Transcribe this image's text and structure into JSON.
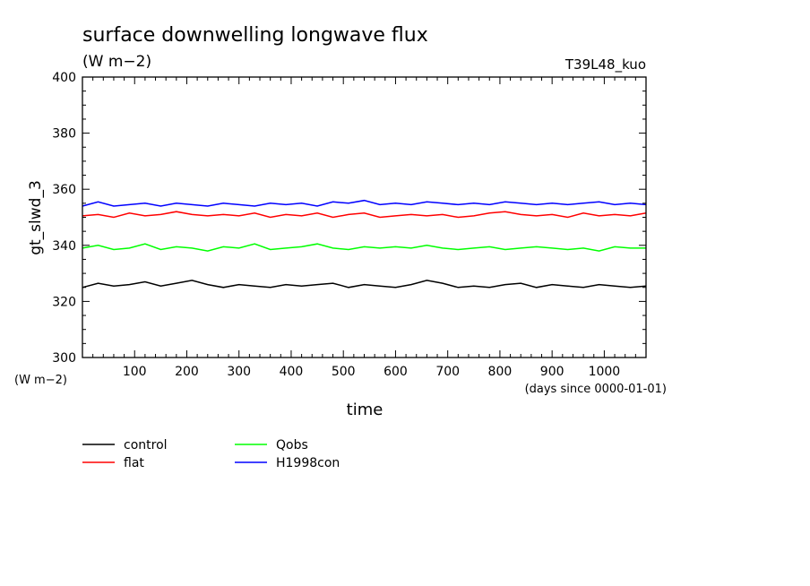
{
  "chart_data": {
    "type": "line",
    "title": "surface downwelling longwave flux",
    "units": "(W m−2)",
    "run_label": "T39L48_kuo",
    "ylabel": "gt_slwd_3",
    "ylabel_units": "(W m−2)",
    "xlabel": "time",
    "xlabel_units": "(days since 0000-01-01)",
    "xlim": [
      0,
      1080
    ],
    "ylim": [
      300,
      400
    ],
    "x_ticks": [
      100,
      200,
      300,
      400,
      500,
      600,
      700,
      800,
      900,
      1000
    ],
    "y_ticks": [
      300,
      320,
      340,
      360,
      380,
      400
    ],
    "grid": false,
    "legend_position": "bottom-left",
    "x": [
      0,
      30,
      60,
      90,
      120,
      150,
      180,
      210,
      240,
      270,
      300,
      330,
      360,
      390,
      420,
      450,
      480,
      510,
      540,
      570,
      600,
      630,
      660,
      690,
      720,
      750,
      780,
      810,
      840,
      870,
      900,
      930,
      960,
      990,
      1020,
      1050,
      1080
    ],
    "series": [
      {
        "name": "control",
        "color": "#000000",
        "values": [
          325.0,
          326.5,
          325.5,
          326.0,
          327.0,
          325.5,
          326.5,
          327.5,
          326.0,
          325.0,
          326.0,
          325.5,
          325.0,
          326.0,
          325.5,
          326.0,
          326.5,
          325.0,
          326.0,
          325.5,
          325.0,
          326.0,
          327.5,
          326.5,
          325.0,
          325.5,
          325.0,
          326.0,
          326.5,
          325.0,
          326.0,
          325.5,
          325.0,
          326.0,
          325.5,
          325.0,
          325.5
        ]
      },
      {
        "name": "flat",
        "color": "#ff0000",
        "values": [
          350.5,
          351.0,
          350.0,
          351.5,
          350.5,
          351.0,
          352.0,
          351.0,
          350.5,
          351.0,
          350.5,
          351.5,
          350.0,
          351.0,
          350.5,
          351.5,
          350.0,
          351.0,
          351.5,
          350.0,
          350.5,
          351.0,
          350.5,
          351.0,
          350.0,
          350.5,
          351.5,
          352.0,
          351.0,
          350.5,
          351.0,
          350.0,
          351.5,
          350.5,
          351.0,
          350.5,
          351.5
        ]
      },
      {
        "name": "Qobs",
        "color": "#00ff00",
        "values": [
          339.0,
          340.0,
          338.5,
          339.0,
          340.5,
          338.5,
          339.5,
          339.0,
          338.0,
          339.5,
          339.0,
          340.5,
          338.5,
          339.0,
          339.5,
          340.5,
          339.0,
          338.5,
          339.5,
          339.0,
          339.5,
          339.0,
          340.0,
          339.0,
          338.5,
          339.0,
          339.5,
          338.5,
          339.0,
          339.5,
          339.0,
          338.5,
          339.0,
          338.0,
          339.5,
          339.0,
          339.0
        ]
      },
      {
        "name": "H1998con",
        "color": "#0000ff",
        "values": [
          354.0,
          355.5,
          354.0,
          354.5,
          355.0,
          354.0,
          355.0,
          354.5,
          354.0,
          355.0,
          354.5,
          354.0,
          355.0,
          354.5,
          355.0,
          354.0,
          355.5,
          355.0,
          356.0,
          354.5,
          355.0,
          354.5,
          355.5,
          355.0,
          354.5,
          355.0,
          354.5,
          355.5,
          355.0,
          354.5,
          355.0,
          354.5,
          355.0,
          355.5,
          354.5,
          355.0,
          354.5
        ]
      }
    ]
  }
}
